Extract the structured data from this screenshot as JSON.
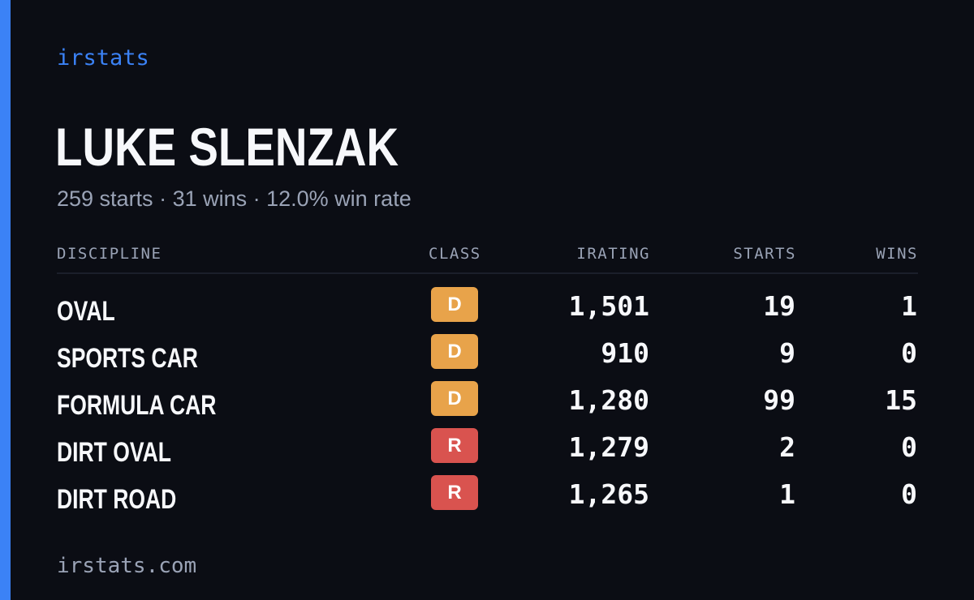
{
  "brand": "irstats",
  "driver": {
    "name": "LUKE SLENZAK",
    "starts_text": "259 starts",
    "wins_text": "31 wins",
    "win_rate_text": "12.0% win rate",
    "separator": " · "
  },
  "table": {
    "headers": {
      "discipline": "DISCIPLINE",
      "class": "CLASS",
      "irating": "IRATING",
      "starts": "STARTS",
      "wins": "WINS"
    },
    "rows": [
      {
        "discipline": "OVAL",
        "class": "D",
        "class_color": "#e8a34a",
        "irating": "1,501",
        "starts": "19",
        "wins": "1"
      },
      {
        "discipline": "SPORTS CAR",
        "class": "D",
        "class_color": "#e8a34a",
        "irating": "910",
        "starts": "9",
        "wins": "0"
      },
      {
        "discipline": "FORMULA CAR",
        "class": "D",
        "class_color": "#e8a34a",
        "irating": "1,280",
        "starts": "99",
        "wins": "15"
      },
      {
        "discipline": "DIRT OVAL",
        "class": "R",
        "class_color": "#d9534f",
        "irating": "1,279",
        "starts": "2",
        "wins": "0"
      },
      {
        "discipline": "DIRT ROAD",
        "class": "R",
        "class_color": "#d9534f",
        "irating": "1,265",
        "starts": "1",
        "wins": "0"
      }
    ]
  },
  "footer": "irstats.com",
  "colors": {
    "accent": "#3b82f6",
    "background": "#0b0d14",
    "class_d": "#e8a34a",
    "class_r": "#d9534f"
  }
}
